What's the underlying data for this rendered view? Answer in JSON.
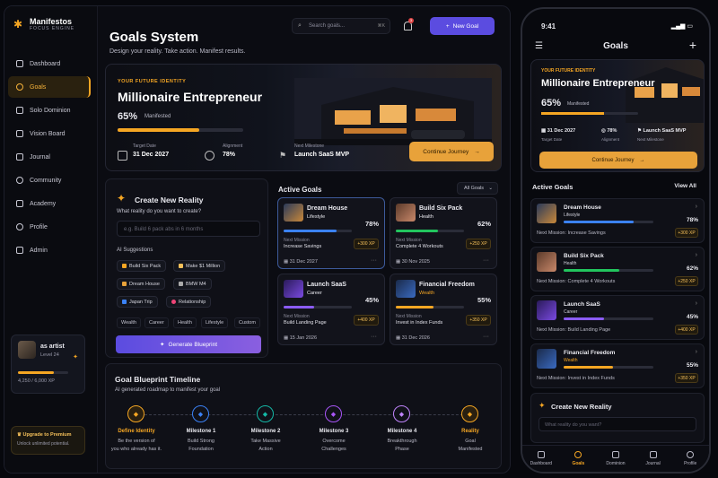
{
  "app": {
    "name": "Manifestos",
    "tagline": "FOCUS ENGINE"
  },
  "sidebar": {
    "items": [
      {
        "label": "Dashboard"
      },
      {
        "label": "Goals",
        "active": true
      },
      {
        "label": "Solo Dominion"
      },
      {
        "label": "Vision Board"
      },
      {
        "label": "Journal"
      },
      {
        "label": "Community"
      },
      {
        "label": "Academy"
      },
      {
        "label": "Profile"
      },
      {
        "label": "Admin"
      }
    ],
    "user": {
      "name": "as artist",
      "level": "Level 24",
      "xp": "4,250 / 6,000 XP",
      "xp_fraction": 0.71
    },
    "premium": {
      "title": "Upgrade to Premium",
      "desc": "Unlock unlimited potential."
    }
  },
  "header": {
    "title": "Goals System",
    "subtitle": "Design your reality. Take action. Manifest results.",
    "search_placeholder": "Search goals...",
    "search_shortcut": "⌘K",
    "notif_count": "3",
    "new_goal": "New Goal"
  },
  "hero": {
    "label": "YOUR FUTURE IDENTITY",
    "title": "Millionaire Entrepreneur",
    "percent": "65%",
    "percent_value": 65,
    "percent_label": "Manifested",
    "target_label": "Target Date",
    "target_value": "31 Dec 2027",
    "alignment_label": "Alignment",
    "alignment_value": "78%",
    "milestone_label": "Next Milestone",
    "milestone_value": "Launch SaaS MVP",
    "continue": "Continue Journey"
  },
  "create": {
    "title": "Create New Reality",
    "question": "What reality do you want to create?",
    "placeholder": "e.g. Build 6 pack abs in 6 months",
    "ai_label": "AI Suggestions",
    "suggestions": [
      "Build Six Pack",
      "Make $1 Million",
      "Dream House",
      "BMW M4",
      "Japan Trip",
      "Relationship"
    ],
    "tabs": [
      "Wealth",
      "Career",
      "Health",
      "Lifestyle",
      "Custom"
    ],
    "generate": "Generate Blueprint"
  },
  "active": {
    "title": "Active Goals",
    "filter": "All Goals",
    "next_label": "Next Mission",
    "goals": [
      {
        "name": "Dream House",
        "cat": "Lifestyle",
        "pct": "78%",
        "progress": 78,
        "mission": "Increase Savings",
        "xp": "+300 XP",
        "date": "31 Dec 2027",
        "color": "#3b82f6"
      },
      {
        "name": "Build Six Pack",
        "cat": "Health",
        "pct": "62%",
        "progress": 62,
        "mission": "Complete 4 Workouts",
        "xp": "+250 XP",
        "date": "30 Nov 2025",
        "color": "#22c55e"
      },
      {
        "name": "Launch SaaS",
        "cat": "Career",
        "pct": "45%",
        "progress": 45,
        "mission": "Build Landing Page",
        "xp": "+400 XP",
        "date": "15 Jan 2026",
        "color": "#8b5cf6"
      },
      {
        "name": "Financial Freedom",
        "cat": "Wealth",
        "pct": "55%",
        "progress": 55,
        "mission": "Invest in Index Funds",
        "xp": "+350 XP",
        "date": "31 Dec 2026",
        "color": "#f5a623"
      }
    ]
  },
  "timeline": {
    "title": "Goal Blueprint Timeline",
    "subtitle": "AI generated roadmap to manifest your goal",
    "nodes": [
      {
        "label": "Define Identity",
        "desc1": "Be the version of",
        "desc2": "you who already has it.",
        "color": "#f5a623"
      },
      {
        "label": "Milestone 1",
        "desc1": "Build Strong",
        "desc2": "Foundation",
        "color": "#3b82f6"
      },
      {
        "label": "Milestone 2",
        "desc1": "Take Massive",
        "desc2": "Action",
        "color": "#14b8a6"
      },
      {
        "label": "Milestone 3",
        "desc1": "Overcome",
        "desc2": "Challenges",
        "color": "#a855f7"
      },
      {
        "label": "Milestone 4",
        "desc1": "Breakthrough",
        "desc2": "Phase",
        "color": "#c084fc"
      },
      {
        "label": "Reality",
        "desc1": "Goal",
        "desc2": "Manifested",
        "color": "#f5a623"
      }
    ]
  },
  "phone": {
    "time": "9:41",
    "title": "Goals",
    "section": "Active Goals",
    "view_all": "View All",
    "mission_prefix": "Next Mission: ",
    "missions": [
      "Next Mission: Increase Savings",
      "Next Mission: Complete 4 Workouts",
      "Next Mission: Build Landing Page",
      "Next Mission: Invest in Index Funds"
    ],
    "create_title": "Create New Reality",
    "create_placeholder": "What reality do you want?",
    "tabs": [
      "Dashboard",
      "Goals",
      "Dominion",
      "Journal",
      "Profile"
    ]
  }
}
